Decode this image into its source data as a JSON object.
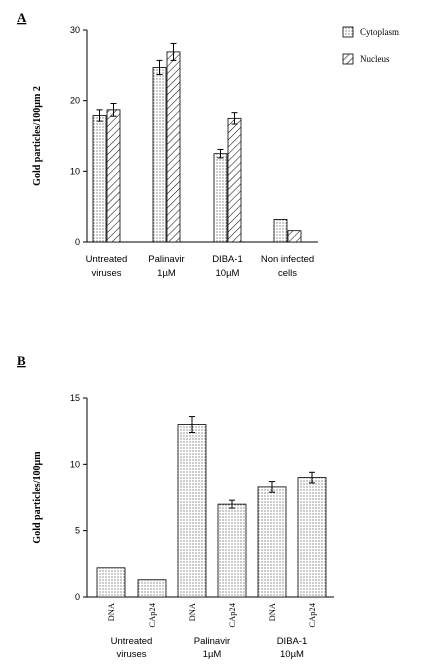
{
  "chart_data": [
    {
      "panel": "A",
      "type": "bar",
      "ylabel": "Gold particles/100µm 2",
      "ylim": [
        0,
        30
      ],
      "yticks": [
        0,
        10,
        20,
        30
      ],
      "categories": [
        [
          "Untreated",
          "viruses"
        ],
        [
          "Palinavir",
          "1µM"
        ],
        [
          "DIBA-1",
          "10µM"
        ],
        [
          "Non  infected",
          "cells"
        ]
      ],
      "series": [
        {
          "name": "Cytoplasm",
          "pattern": "dots",
          "values": [
            17.9,
            24.7,
            12.5,
            3.2
          ],
          "errors": [
            0.8,
            1.0,
            0.6,
            0
          ]
        },
        {
          "name": "Nucleus",
          "pattern": "hatch",
          "values": [
            18.7,
            26.9,
            17.5,
            1.6
          ],
          "errors": [
            0.9,
            1.2,
            0.8,
            0
          ]
        }
      ],
      "legend": "top-right"
    },
    {
      "panel": "B",
      "type": "bar",
      "ylabel": "Gold  particles/100µm",
      "ylim": [
        0,
        15
      ],
      "yticks": [
        0,
        5,
        10,
        15
      ],
      "bar_labels": [
        "DNA",
        "CAp24",
        "DNA",
        "CAp24",
        "DNA",
        "CAp24"
      ],
      "groups": [
        [
          "Untreated",
          "viruses"
        ],
        [
          "Palinavir",
          "1µM"
        ],
        [
          "DIBA-1",
          "10µM"
        ]
      ],
      "values": [
        2.2,
        1.3,
        13.0,
        7.0,
        8.3,
        9.0
      ],
      "errors": [
        0,
        0,
        0.6,
        0.3,
        0.4,
        0.4
      ]
    }
  ]
}
